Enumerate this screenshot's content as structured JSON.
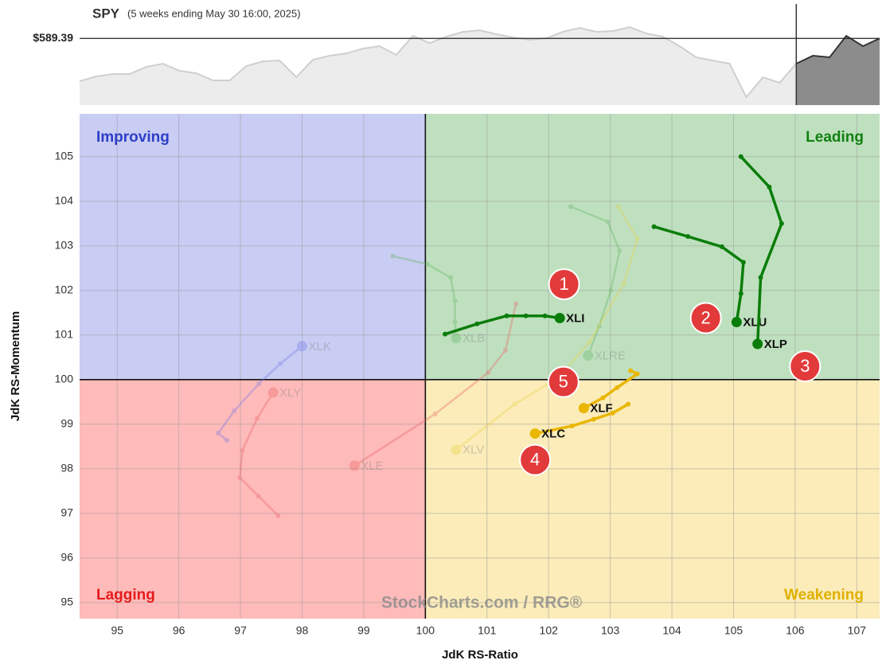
{
  "chart_data": [
    {
      "type": "line",
      "title": "SPY",
      "subtitle": "(5 weeks ending May 30 16:00, 2025)",
      "price": 589.39,
      "price_label": "$589.39",
      "ylim": [
        565,
        602
      ],
      "highlight_start": 43,
      "color": "#cfcfcf",
      "highlight_color": "#8c8c8c",
      "values": [
        573.74,
        575.49,
        576.36,
        576.36,
        578.98,
        580.15,
        577.53,
        576.65,
        574.03,
        574.03,
        579.27,
        581.02,
        581.31,
        575.2,
        581.6,
        583.06,
        583.93,
        585.68,
        586.56,
        583.35,
        590.34,
        587.72,
        590.05,
        591.8,
        592.38,
        590.93,
        589.76,
        588.89,
        589.47,
        591.8,
        593.26,
        591.8,
        592.09,
        593.55,
        591.22,
        590.05,
        586.56,
        582.48,
        581.31,
        580.15,
        567.91,
        575.2,
        573.16,
        580.15,
        583.06,
        582.48,
        590.34,
        586.56,
        589.39
      ]
    },
    {
      "type": "rrg",
      "x_label": "JdK RS-Ratio",
      "y_label": "JdK RS-Momentum",
      "xlim": [
        94.39,
        107.37
      ],
      "ylim": [
        94.64,
        105.96
      ],
      "xticks": [
        95,
        96,
        97,
        98,
        99,
        100,
        101,
        102,
        103,
        104,
        105,
        106,
        107
      ],
      "yticks": [
        95,
        96,
        97,
        98,
        99,
        100,
        101,
        102,
        103,
        104,
        105
      ],
      "xcenter": 100,
      "ycenter": 100,
      "grid": true,
      "quadrants": [
        {
          "name": "Improving",
          "color": "#2d3fc7",
          "fill": "#c9ccf3"
        },
        {
          "name": "Leading",
          "color": "#118011",
          "fill": "#bfe0bf"
        },
        {
          "name": "Lagging",
          "color": "#e51c1c",
          "fill": "#ffbaba"
        },
        {
          "name": "Weakening",
          "color": "#e0b000",
          "fill": "#fbecb9"
        }
      ],
      "watermark": "StockCharts.com / RRG®",
      "series": [
        {
          "name": "XLB",
          "color": "#5fb35f",
          "faded": true,
          "x": [
            99.47,
            100.03,
            100.41,
            100.48,
            100.48,
            100.5
          ],
          "y": [
            102.77,
            102.59,
            102.29,
            101.77,
            101.29,
            100.93
          ]
        },
        {
          "name": "XLRE",
          "color": "#5fb35f",
          "faded": true,
          "x": [
            102.36,
            102.96,
            103.15,
            103.01,
            102.82,
            102.64
          ],
          "y": [
            103.88,
            103.54,
            102.89,
            102,
            101.2,
            100.54
          ]
        },
        {
          "name": "XLV",
          "color": "#e8d040",
          "faded": true,
          "x": [
            103.13,
            103.44,
            103.22,
            102.66,
            102.16,
            101.45,
            100.5
          ],
          "y": [
            103.88,
            103.16,
            102.16,
            100.84,
            100.04,
            99.45,
            98.43
          ]
        },
        {
          "name": "XLE",
          "color": "#e86060",
          "faded": true,
          "x": [
            101.47,
            101.3,
            101.02,
            100.16,
            98.85
          ],
          "y": [
            101.7,
            100.66,
            100.16,
            99.23,
            98.07
          ]
        },
        {
          "name": "XLY",
          "color": "#e86060",
          "faded": true,
          "x": [
            97.61,
            97.29,
            96.99,
            97.03,
            97.27,
            97.53
          ],
          "y": [
            96.95,
            97.39,
            97.8,
            98.41,
            99.13,
            99.71
          ]
        },
        {
          "name": "XLK",
          "color": "#7078e8",
          "faded": true,
          "x": [
            96.78,
            96.64,
            96.9,
            97.3,
            97.65,
            98.0
          ],
          "y": [
            98.64,
            98.8,
            99.3,
            99.91,
            100.36,
            100.75
          ]
        },
        {
          "name": "XLI",
          "color": "#0a7d0a",
          "faded": false,
          "x": [
            100.32,
            100.84,
            101.32,
            101.63,
            101.94,
            102.18
          ],
          "y": [
            101.02,
            101.25,
            101.43,
            101.43,
            101.43,
            101.38
          ]
        },
        {
          "name": "XLU",
          "color": "#0a7d0a",
          "faded": false,
          "x": [
            103.71,
            104.26,
            104.81,
            105.16,
            105.12,
            105.05
          ],
          "y": [
            103.43,
            103.21,
            102.98,
            102.63,
            101.93,
            101.29
          ]
        },
        {
          "name": "XLP",
          "color": "#0a7d0a",
          "faded": false,
          "x": [
            105.12,
            105.58,
            105.78,
            105.44,
            105.39
          ],
          "y": [
            105,
            104.32,
            103.5,
            102.29,
            100.8
          ]
        },
        {
          "name": "XLF",
          "color": "#eab600",
          "faded": false,
          "x": [
            103.33,
            103.44,
            103.11,
            102.88,
            102.57
          ],
          "y": [
            100.2,
            100.13,
            99.82,
            99.59,
            99.36
          ]
        },
        {
          "name": "XLC",
          "color": "#eab600",
          "faded": false,
          "x": [
            103.29,
            103.04,
            102.73,
            102.38,
            101.78
          ],
          "y": [
            99.45,
            99.25,
            99.11,
            98.96,
            98.79
          ]
        }
      ],
      "annotations": [
        {
          "text": "1",
          "x": 102.25,
          "y": 102.14
        },
        {
          "text": "2",
          "x": 104.55,
          "y": 101.38
        },
        {
          "text": "3",
          "x": 106.16,
          "y": 100.3
        },
        {
          "text": "4",
          "x": 101.78,
          "y": 98.2
        },
        {
          "text": "5",
          "x": 102.24,
          "y": 99.95
        }
      ]
    }
  ]
}
